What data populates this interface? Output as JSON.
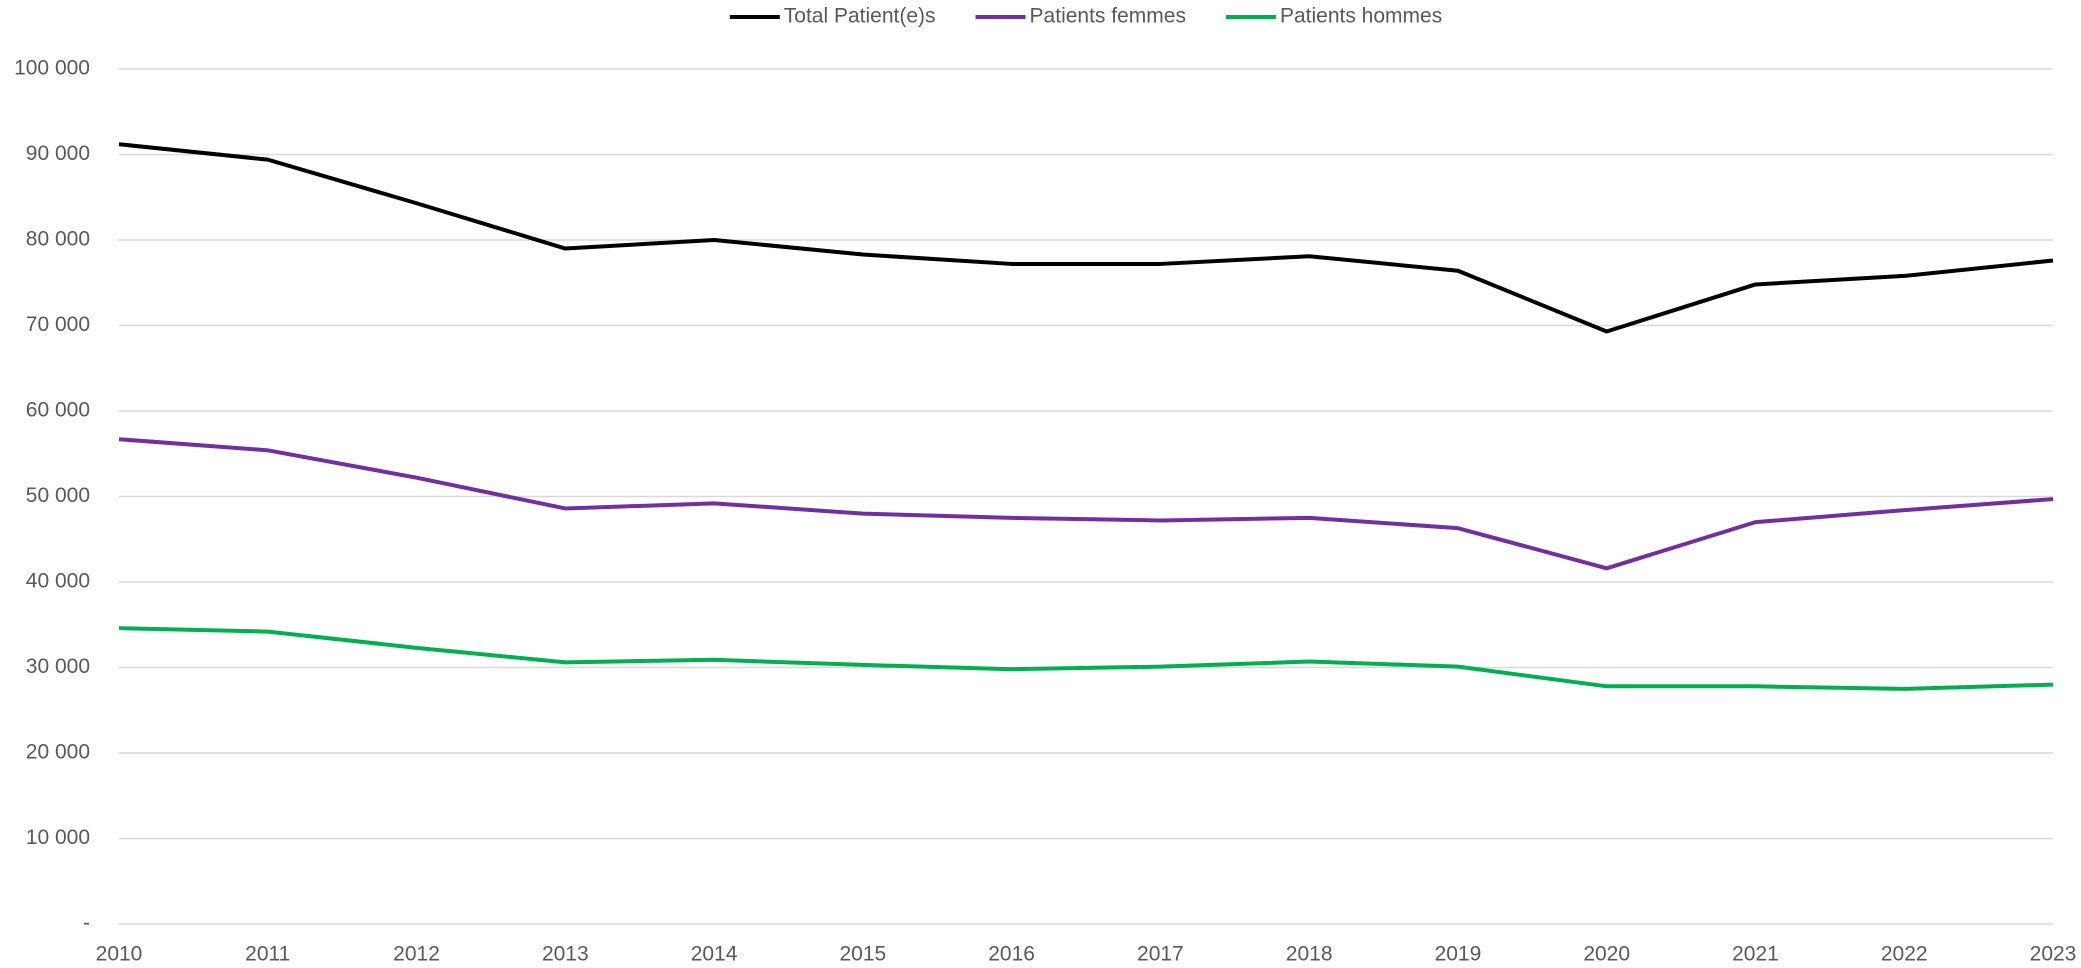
{
  "chart_data": {
    "type": "line",
    "categories": [
      "2010",
      "2011",
      "2012",
      "2013",
      "2014",
      "2015",
      "2016",
      "2017",
      "2018",
      "2019",
      "2020",
      "2021",
      "2022",
      "2023"
    ],
    "series": [
      {
        "name": "Total Patient(e)s",
        "color": "#000000",
        "values": [
          91200,
          89400,
          84300,
          79000,
          80000,
          78300,
          77200,
          77200,
          78100,
          76400,
          69300,
          74800,
          75800,
          77600
        ]
      },
      {
        "name": "Patients femmes",
        "color": "#7030a0",
        "values": [
          56700,
          55400,
          52200,
          48600,
          49200,
          48000,
          47500,
          47200,
          47500,
          46300,
          41600,
          47000,
          48400,
          49700
        ]
      },
      {
        "name": "Patients hommes",
        "color": "#00b050",
        "values": [
          34600,
          34200,
          32300,
          30600,
          30900,
          30300,
          29800,
          30100,
          30700,
          30100,
          27800,
          27800,
          27500,
          28000
        ]
      }
    ],
    "ylim": [
      0,
      100000
    ],
    "yticks": [
      {
        "value": 0,
        "label": "-"
      },
      {
        "value": 10000,
        "label": "10 000"
      },
      {
        "value": 20000,
        "label": "20 000"
      },
      {
        "value": 30000,
        "label": "30 000"
      },
      {
        "value": 40000,
        "label": "40 000"
      },
      {
        "value": 50000,
        "label": "50 000"
      },
      {
        "value": 60000,
        "label": "60 000"
      },
      {
        "value": 70000,
        "label": "70 000"
      },
      {
        "value": 80000,
        "label": "80 000"
      },
      {
        "value": 90000,
        "label": "90 000"
      },
      {
        "value": 100000,
        "label": "100 000"
      }
    ],
    "grid": true,
    "legend": "top"
  }
}
